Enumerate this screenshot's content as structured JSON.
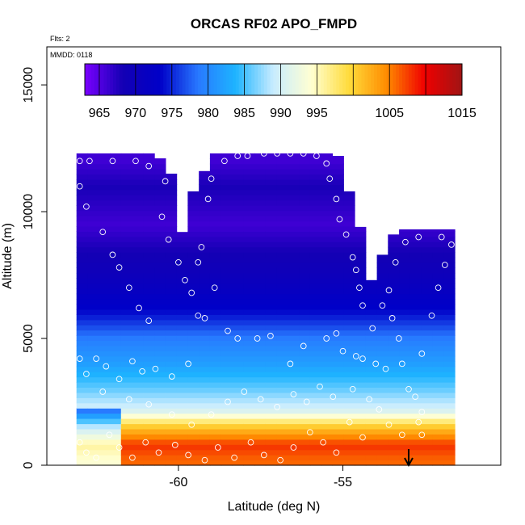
{
  "chart_data": {
    "type": "heatmap",
    "title": "ORCAS RF02 APO_FMPD",
    "notes": {
      "flights": "Flts: 2",
      "date": "MMDD: 0118"
    },
    "xlabel": "Latitude (deg N)",
    "ylabel": "Altitude (m)",
    "xlim": [
      -64.0,
      -50.2
    ],
    "ylim": [
      0,
      16500
    ],
    "x_ticks": [
      -60,
      -55
    ],
    "x_tick_labels": [
      "-60",
      "-55"
    ],
    "y_ticks": [
      0,
      5000,
      10000,
      15000
    ],
    "y_tick_labels": [
      "0",
      "5000",
      "10000",
      "15000"
    ],
    "colorbar": {
      "min": 963,
      "max": 1015,
      "ticks": [
        965,
        970,
        975,
        980,
        985,
        990,
        995,
        1005,
        1015
      ],
      "tick_labels": [
        "965",
        "970",
        "975",
        "980",
        "985",
        "990",
        "995",
        "1005",
        "1015"
      ],
      "colors": [
        "#7a00ff",
        "#1400b4",
        "#0000c8",
        "#2878ff",
        "#1eb4ff",
        "#c8ecff",
        "#ffffd2",
        "#ffdc3c",
        "#ff8c00",
        "#f00000",
        "#a01414"
      ]
    },
    "field": {
      "xrange": [
        -63.1,
        -51.6
      ],
      "layers": [
        {
          "alt": 200,
          "value": 1006
        },
        {
          "alt": 800,
          "value": 1008
        },
        {
          "alt": 1500,
          "value": 1001
        },
        {
          "alt": 2200,
          "value": 990
        },
        {
          "alt": 3000,
          "value": 986
        },
        {
          "alt": 4000,
          "value": 982
        },
        {
          "alt": 5000,
          "value": 979
        },
        {
          "alt": 6000,
          "value": 974
        },
        {
          "alt": 7500,
          "value": 970
        },
        {
          "alt": 9500,
          "value": 966
        },
        {
          "alt": 11000,
          "value": 968
        },
        {
          "alt": 12000,
          "value": 966
        }
      ]
    },
    "sample_points": [
      [
        -63.0,
        12000
      ],
      [
        -62.7,
        12000
      ],
      [
        -62.0,
        12000
      ],
      [
        -61.3,
        12000
      ],
      [
        -60.9,
        11800
      ],
      [
        -60.4,
        11200
      ],
      [
        -59.0,
        11300
      ],
      [
        -58.6,
        12000
      ],
      [
        -58.2,
        12200
      ],
      [
        -57.9,
        12200
      ],
      [
        -57.4,
        12300
      ],
      [
        -57.0,
        12300
      ],
      [
        -56.6,
        12300
      ],
      [
        -56.2,
        12300
      ],
      [
        -55.8,
        12200
      ],
      [
        -55.5,
        11900
      ],
      [
        -55.4,
        11300
      ],
      [
        -55.2,
        10500
      ],
      [
        -55.1,
        9700
      ],
      [
        -54.9,
        9100
      ],
      [
        -54.7,
        8200
      ],
      [
        -54.6,
        7700
      ],
      [
        -54.5,
        7000
      ],
      [
        -54.4,
        6300
      ],
      [
        -54.1,
        5400
      ],
      [
        -53.8,
        6300
      ],
      [
        -53.6,
        6900
      ],
      [
        -53.5,
        5800
      ],
      [
        -53.3,
        5000
      ],
      [
        -53.2,
        4000
      ],
      [
        -53.0,
        3000
      ],
      [
        -52.8,
        2700
      ],
      [
        -52.6,
        2100
      ],
      [
        -53.1,
        8800
      ],
      [
        -53.4,
        8000
      ],
      [
        -52.7,
        9000
      ],
      [
        -52.0,
        9000
      ],
      [
        -51.7,
        8700
      ],
      [
        -51.9,
        7900
      ],
      [
        -52.1,
        7000
      ],
      [
        -52.3,
        5900
      ],
      [
        -52.6,
        4400
      ],
      [
        -63.0,
        11000
      ],
      [
        -62.8,
        10200
      ],
      [
        -62.3,
        9200
      ],
      [
        -62.0,
        8300
      ],
      [
        -61.8,
        7800
      ],
      [
        -61.5,
        7000
      ],
      [
        -61.2,
        6200
      ],
      [
        -60.9,
        5700
      ],
      [
        -60.5,
        9800
      ],
      [
        -60.3,
        8900
      ],
      [
        -60.0,
        8000
      ],
      [
        -59.8,
        7300
      ],
      [
        -59.6,
        6800
      ],
      [
        -59.4,
        8000
      ],
      [
        -59.3,
        8600
      ],
      [
        -59.1,
        10500
      ],
      [
        -58.9,
        7000
      ],
      [
        -59.4,
        5900
      ],
      [
        -59.2,
        5800
      ],
      [
        -58.5,
        5300
      ],
      [
        -58.2,
        5000
      ],
      [
        -57.6,
        5000
      ],
      [
        -57.2,
        5100
      ],
      [
        -56.6,
        4000
      ],
      [
        -56.2,
        4700
      ],
      [
        -55.5,
        5000
      ],
      [
        -55.2,
        5200
      ],
      [
        -55.0,
        4500
      ],
      [
        -54.6,
        4300
      ],
      [
        -54.4,
        4200
      ],
      [
        -54.0,
        4000
      ],
      [
        -53.7,
        3800
      ],
      [
        -63.2,
        5000
      ],
      [
        -63.0,
        4200
      ],
      [
        -62.8,
        3600
      ],
      [
        -62.5,
        4200
      ],
      [
        -62.2,
        3900
      ],
      [
        -61.8,
        3400
      ],
      [
        -61.4,
        4100
      ],
      [
        -61.1,
        3700
      ],
      [
        -60.7,
        3800
      ],
      [
        -60.2,
        3500
      ],
      [
        -59.7,
        4000
      ],
      [
        -63.3,
        2000
      ],
      [
        -63.2,
        1400
      ],
      [
        -63.0,
        900
      ],
      [
        -62.8,
        500
      ],
      [
        -62.5,
        300
      ],
      [
        -62.1,
        1200
      ],
      [
        -61.8,
        700
      ],
      [
        -61.4,
        300
      ],
      [
        -61.0,
        900
      ],
      [
        -60.6,
        500
      ],
      [
        -60.1,
        800
      ],
      [
        -59.7,
        400
      ],
      [
        -59.2,
        200
      ],
      [
        -58.8,
        700
      ],
      [
        -58.3,
        300
      ],
      [
        -57.8,
        900
      ],
      [
        -57.4,
        400
      ],
      [
        -56.9,
        200
      ],
      [
        -56.5,
        700
      ],
      [
        -56.0,
        1300
      ],
      [
        -55.6,
        900
      ],
      [
        -55.2,
        500
      ],
      [
        -54.8,
        1700
      ],
      [
        -54.4,
        1100
      ],
      [
        -53.9,
        2200
      ],
      [
        -53.6,
        1600
      ],
      [
        -53.2,
        1200
      ],
      [
        -52.7,
        1700
      ],
      [
        -52.6,
        1200
      ],
      [
        -62.3,
        2900
      ],
      [
        -61.5,
        2600
      ],
      [
        -60.9,
        2400
      ],
      [
        -60.2,
        2000
      ],
      [
        -59.6,
        1600
      ],
      [
        -59.0,
        2000
      ],
      [
        -58.5,
        2500
      ],
      [
        -58.0,
        2900
      ],
      [
        -57.5,
        2600
      ],
      [
        -57.0,
        2300
      ],
      [
        -56.5,
        2800
      ],
      [
        -56.1,
        2500
      ],
      [
        -55.7,
        3100
      ],
      [
        -55.3,
        2700
      ],
      [
        -54.7,
        3000
      ],
      [
        -54.2,
        2600
      ]
    ],
    "end_marker_latitude": -53.0
  }
}
